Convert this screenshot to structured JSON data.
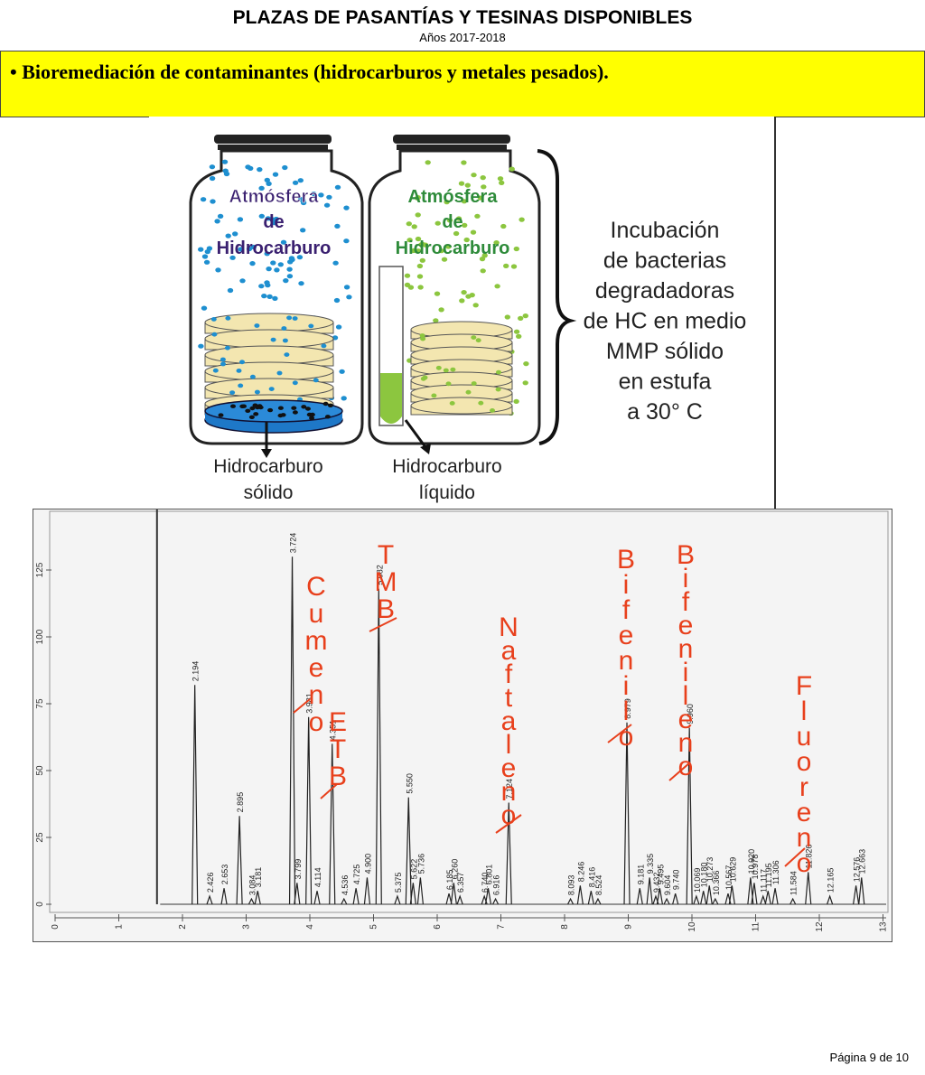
{
  "header": {
    "title": "PLAZAS DE PASANTÍAS Y TESINAS DISPONIBLES",
    "subtitle": "Años 2017-2018"
  },
  "banner": {
    "bullet": "•",
    "text": "Bioremediación de contaminantes (hidrocarburos y metales pesados)."
  },
  "figure": {
    "jar_left_label": [
      "Atmósfera",
      "de",
      "Hidrocarburo"
    ],
    "jar_right_label": [
      "Atmósfera",
      "de",
      "Hidrocarburo"
    ],
    "caption_left": [
      "Hidrocarburo",
      "sólido"
    ],
    "caption_right": [
      "Hidrocarburo",
      "líquido"
    ],
    "description": [
      "Incubación",
      "de bacterias",
      "degradadoras",
      "de HC en medio",
      "MMP sólido",
      "en estufa",
      "a 30° C"
    ],
    "colors": {
      "blue_dots": "#1e8fd0",
      "green_dots": "#8cc63f",
      "plate": "#f3e6b0",
      "green_text": "#2e8b3a",
      "purple_text": "#3a2070"
    }
  },
  "chromatogram": {
    "y_ticks": [
      "0",
      "25",
      "50",
      "75",
      "100",
      "125"
    ],
    "x_ticks": [
      "0",
      "1",
      "2",
      "3",
      "4",
      "5",
      "6",
      "7",
      "8",
      "9",
      "10",
      "11",
      "12",
      "13"
    ],
    "peaks": [
      {
        "t": 2.194,
        "label": "2.194",
        "h": 82
      },
      {
        "t": 2.426,
        "label": "2.426",
        "h": 3
      },
      {
        "t": 2.653,
        "label": "2.653",
        "h": 6
      },
      {
        "t": 2.895,
        "label": "2.895",
        "h": 33
      },
      {
        "t": 3.084,
        "label": "3.084",
        "h": 2
      },
      {
        "t": 3.181,
        "label": "3.181",
        "h": 5
      },
      {
        "t": 3.724,
        "label": "3.724",
        "h": 130
      },
      {
        "t": 3.799,
        "label": "3.799",
        "h": 8
      },
      {
        "t": 3.981,
        "label": "3.981",
        "h": 70
      },
      {
        "t": 4.114,
        "label": "4.114",
        "h": 5
      },
      {
        "t": 4.351,
        "label": "4.351",
        "h": 60
      },
      {
        "t": 4.536,
        "label": "4.536",
        "h": 2
      },
      {
        "t": 4.725,
        "label": "4.725",
        "h": 6
      },
      {
        "t": 4.9,
        "label": "4.900",
        "h": 10
      },
      {
        "t": 5.082,
        "label": "5.082",
        "h": 118
      },
      {
        "t": 5.375,
        "label": "5.375",
        "h": 3
      },
      {
        "t": 5.55,
        "label": "5.550",
        "h": 40
      },
      {
        "t": 5.622,
        "label": "5.622",
        "h": 8
      },
      {
        "t": 5.736,
        "label": "5.736",
        "h": 10
      },
      {
        "t": 6.185,
        "label": "6.185",
        "h": 4
      },
      {
        "t": 6.26,
        "label": "6.260",
        "h": 8
      },
      {
        "t": 6.357,
        "label": "6.357",
        "h": 3
      },
      {
        "t": 6.74,
        "label": "6.740",
        "h": 3
      },
      {
        "t": 6.801,
        "label": "6.801",
        "h": 6
      },
      {
        "t": 6.916,
        "label": "6.916",
        "h": 2
      },
      {
        "t": 7.124,
        "label": "7.124",
        "h": 38
      },
      {
        "t": 8.093,
        "label": "8.093",
        "h": 2
      },
      {
        "t": 8.246,
        "label": "8.246",
        "h": 7
      },
      {
        "t": 8.416,
        "label": "8.416",
        "h": 5
      },
      {
        "t": 8.524,
        "label": "8.524",
        "h": 2
      },
      {
        "t": 8.979,
        "label": "8.979",
        "h": 68
      },
      {
        "t": 9.181,
        "label": "9.181",
        "h": 6
      },
      {
        "t": 9.335,
        "label": "9.335",
        "h": 10
      },
      {
        "t": 9.432,
        "label": "9.432",
        "h": 3
      },
      {
        "t": 9.495,
        "label": "9.495",
        "h": 6
      },
      {
        "t": 9.604,
        "label": "9.604",
        "h": 2
      },
      {
        "t": 9.74,
        "label": "9.740",
        "h": 4
      },
      {
        "t": 9.96,
        "label": "9.960",
        "h": 66
      },
      {
        "t": 10.069,
        "label": "10.069",
        "h": 3
      },
      {
        "t": 10.18,
        "label": "10.180",
        "h": 5
      },
      {
        "t": 10.273,
        "label": "10.273",
        "h": 7
      },
      {
        "t": 10.366,
        "label": "10.366",
        "h": 2
      },
      {
        "t": 10.567,
        "label": "10.567",
        "h": 4
      },
      {
        "t": 10.629,
        "label": "10.629",
        "h": 7
      },
      {
        "t": 10.92,
        "label": "10.920",
        "h": 10
      },
      {
        "t": 10.978,
        "label": "10.978",
        "h": 8
      },
      {
        "t": 11.117,
        "label": "11.117",
        "h": 3
      },
      {
        "t": 11.195,
        "label": "11.195",
        "h": 5
      },
      {
        "t": 11.306,
        "label": "11.306",
        "h": 6
      },
      {
        "t": 11.584,
        "label": "11.584",
        "h": 2
      },
      {
        "t": 11.826,
        "label": "11.826",
        "h": 12
      },
      {
        "t": 12.165,
        "label": "12.165",
        "h": 3
      },
      {
        "t": 12.576,
        "label": "12.576",
        "h": 7
      },
      {
        "t": 12.663,
        "label": "12.663",
        "h": 10
      }
    ],
    "annotations": [
      "Cumeno",
      "ETB",
      "TMB",
      "Naftaleno",
      "Bifenilo",
      "Bifenileno",
      "Fluoreno"
    ],
    "annotation_color": "#e8401c"
  },
  "footer": {
    "page": "Página 9 de 10"
  }
}
